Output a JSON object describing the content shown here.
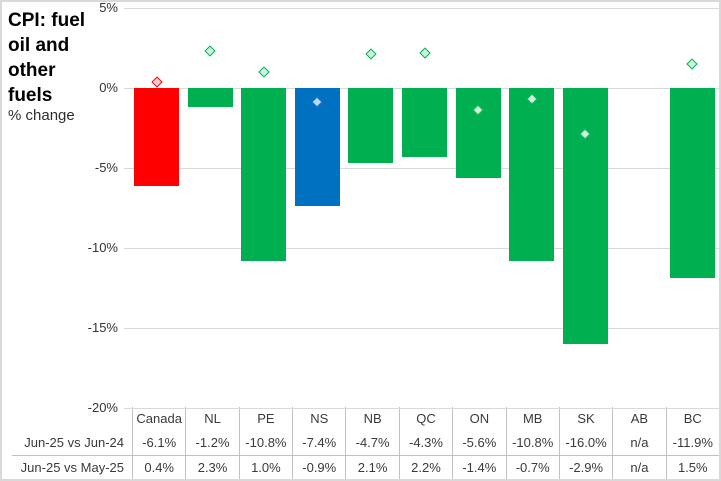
{
  "title": "CPI: fuel oil and other fuels",
  "subtitle": "% change",
  "chart_data": {
    "type": "bar",
    "title": "CPI: fuel oil and other fuels",
    "ylabel": "% change",
    "categories": [
      "Canada",
      "NL",
      "PE",
      "NS",
      "NB",
      "QC",
      "ON",
      "MB",
      "SK",
      "AB",
      "BC"
    ],
    "series": [
      {
        "name": "Jun-25 vs Jun-24",
        "type": "bar",
        "values": [
          -6.1,
          -1.2,
          -10.8,
          -7.4,
          -4.7,
          -4.3,
          -5.6,
          -10.8,
          -16.0,
          null,
          -11.9
        ]
      },
      {
        "name": "Jun-25 vs May-25",
        "type": "scatter",
        "marker": "diamond",
        "values": [
          0.4,
          2.3,
          1.0,
          -0.9,
          2.1,
          2.2,
          -1.4,
          -0.7,
          -2.9,
          null,
          1.5
        ]
      }
    ],
    "bar_colors": [
      "#FF0000",
      "#00B050",
      "#00B050",
      "#0070C0",
      "#00B050",
      "#00B050",
      "#00B050",
      "#00B050",
      "#00B050",
      null,
      "#00B050"
    ],
    "ylim": [
      -20,
      5
    ],
    "yticks": [
      "5%",
      "0%",
      "-5%",
      "-10%",
      "-15%",
      "-20%"
    ],
    "ytick_values": [
      5,
      0,
      -5,
      -10,
      -15,
      -20
    ],
    "grid": true,
    "legend": "none",
    "na_label": "n/a"
  },
  "colors": {
    "green": "#00B050",
    "red": "#FF0000",
    "blue": "#0070C0",
    "marker_fill_green": "#CDF2DC",
    "marker_fill_red": "#F8CCCC",
    "marker_fill_blue": "#BDD7EE",
    "gridline": "#D9D9D9",
    "table_border": "#C0C0C0"
  },
  "table": {
    "column_headers": [
      "Canada",
      "NL",
      "PE",
      "NS",
      "NB",
      "QC",
      "ON",
      "MB",
      "SK",
      "AB",
      "BC"
    ],
    "rows": [
      {
        "label": "Jun-25 vs Jun-24",
        "values": [
          "-6.1%",
          "-1.2%",
          "-10.8%",
          "-7.4%",
          "-4.7%",
          "-4.3%",
          "-5.6%",
          "-10.8%",
          "-16.0%",
          "n/a",
          "-11.9%"
        ]
      },
      {
        "label": "Jun-25 vs May-25",
        "values": [
          "0.4%",
          "2.3%",
          "1.0%",
          "-0.9%",
          "2.1%",
          "2.2%",
          "-1.4%",
          "-0.7%",
          "-2.9%",
          "n/a",
          "1.5%"
        ]
      }
    ]
  }
}
